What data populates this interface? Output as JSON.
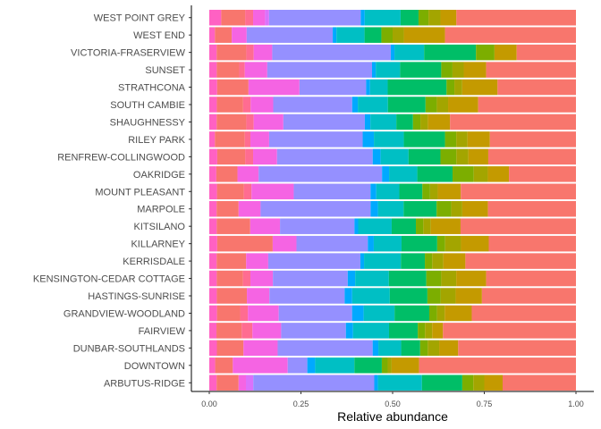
{
  "chart_data": {
    "type": "bar",
    "orientation": "horizontal",
    "stacked": true,
    "title": "",
    "xlabel": "Relative abundance",
    "ylabel": "",
    "xlim": [
      0,
      1
    ],
    "x_ticks": [
      0,
      0.25,
      0.5,
      0.75,
      1
    ],
    "x_tick_labels": [
      "0.00",
      "0.25",
      "0.50",
      "0.75",
      "1.00"
    ],
    "grid": false,
    "legend": "none",
    "categories": [
      "WEST POINT GREY",
      "WEST END",
      "VICTORIA-FRASERVIEW",
      "SUNSET",
      "STRATHCONA",
      "SOUTH CAMBIE",
      "SHAUGHNESSY",
      "RILEY PARK",
      "RENFREW-COLLINGWOOD",
      "OAKRIDGE",
      "MOUNT PLEASANT",
      "MARPOLE",
      "KITSILANO",
      "KILLARNEY",
      "KERRISDALE",
      "KENSINGTON-CEDAR COTTAGE",
      "HASTINGS-SUNRISE",
      "GRANDVIEW-WOODLAND",
      "FAIRVIEW",
      "DUNBAR-SOUTHLANDS",
      "DOWNTOWN",
      "ARBUTUS-RIDGE"
    ],
    "series": [
      {
        "color": "#FF61C3",
        "values": [
          0.03,
          0.015,
          0.02,
          0.02,
          0.02,
          0.02,
          0.02,
          0.015,
          0.02,
          0.02,
          0.02,
          0.02,
          0.02,
          0.02,
          0.02,
          0.02,
          0.02,
          0.02,
          0.02,
          0.02,
          0.015,
          0.02
        ]
      },
      {
        "color": "#F8766D",
        "values": [
          0.06,
          0.045,
          0.08,
          0.06,
          0.08,
          0.07,
          0.08,
          0.08,
          0.07,
          0.06,
          0.07,
          0.06,
          0.09,
          0.14,
          0.08,
          0.07,
          0.08,
          0.06,
          0.07,
          0.07,
          0.045,
          0.06
        ]
      },
      {
        "color": "#FF6C91",
        "values": [
          0.02,
          0.0,
          0.02,
          0.015,
          0.0,
          0.02,
          0.02,
          0.015,
          0.02,
          0.0,
          0.02,
          0.0,
          0.0,
          0.0,
          0.0,
          0.02,
          0.0,
          0.02,
          0.03,
          0.0,
          0.0,
          0.0
        ]
      },
      {
        "color": "#F564E3",
        "values": [
          0.03,
          0.04,
          0.05,
          0.06,
          0.13,
          0.06,
          0.08,
          0.05,
          0.06,
          0.06,
          0.11,
          0.06,
          0.08,
          0.06,
          0.06,
          0.06,
          0.06,
          0.08,
          0.08,
          0.09,
          0.14,
          0.02
        ]
      },
      {
        "color": "#DB72FB",
        "values": [
          0.01,
          0.0,
          0.0,
          0.0,
          0.0,
          0.0,
          0.0,
          0.0,
          0.0,
          0.0,
          0.0,
          0.0,
          0.0,
          0.0,
          0.0,
          0.0,
          0.0,
          0.0,
          0.0,
          0.0,
          0.0,
          0.02
        ]
      },
      {
        "color": "#9590FF",
        "values": [
          0.23,
          0.23,
          0.32,
          0.28,
          0.17,
          0.21,
          0.22,
          0.25,
          0.24,
          0.35,
          0.2,
          0.3,
          0.2,
          0.18,
          0.25,
          0.2,
          0.2,
          0.19,
          0.18,
          0.25,
          0.05,
          0.33
        ]
      },
      {
        "color": "#00A9FF",
        "values": [
          0.01,
          0.01,
          0.01,
          0.01,
          0.01,
          0.015,
          0.015,
          0.03,
          0.02,
          0.02,
          0.015,
          0.02,
          0.01,
          0.015,
          0.01,
          0.02,
          0.02,
          0.03,
          0.02,
          0.015,
          0.02,
          0.01
        ]
      },
      {
        "color": "#00BFC4",
        "values": [
          0.09,
          0.075,
          0.08,
          0.065,
          0.045,
          0.08,
          0.07,
          0.08,
          0.07,
          0.08,
          0.06,
          0.07,
          0.09,
          0.07,
          0.1,
          0.09,
          0.1,
          0.08,
          0.1,
          0.06,
          0.1,
          0.12
        ]
      },
      {
        "color": "#00BE67",
        "values": [
          0.045,
          0.045,
          0.14,
          0.11,
          0.15,
          0.1,
          0.045,
          0.11,
          0.08,
          0.1,
          0.06,
          0.09,
          0.065,
          0.09,
          0.065,
          0.1,
          0.1,
          0.09,
          0.08,
          0.05,
          0.07,
          0.11
        ]
      },
      {
        "color": "#7CAE00",
        "values": [
          0.025,
          0.03,
          0.05,
          0.03,
          0.02,
          0.03,
          0.02,
          0.03,
          0.04,
          0.06,
          0.02,
          0.04,
          0.02,
          0.02,
          0.02,
          0.04,
          0.035,
          0.02,
          0.02,
          0.02,
          0.015,
          0.03
        ]
      },
      {
        "color": "#A3A500",
        "values": [
          0.03,
          0.03,
          0.0,
          0.03,
          0.02,
          0.03,
          0.02,
          0.03,
          0.03,
          0.04,
          0.02,
          0.03,
          0.02,
          0.04,
          0.03,
          0.04,
          0.04,
          0.02,
          0.02,
          0.03,
          0.01,
          0.03
        ]
      },
      {
        "color": "#C49A00",
        "values": [
          0.04,
          0.11,
          0.06,
          0.06,
          0.09,
          0.08,
          0.06,
          0.06,
          0.05,
          0.06,
          0.06,
          0.07,
          0.08,
          0.07,
          0.06,
          0.08,
          0.07,
          0.07,
          0.03,
          0.05,
          0.07,
          0.05
        ]
      },
      {
        "color": "#F8766D",
        "values": [
          0.3,
          0.35,
          0.16,
          0.24,
          0.2,
          0.26,
          0.34,
          0.23,
          0.22,
          0.19,
          0.3,
          0.24,
          0.31,
          0.22,
          0.3,
          0.24,
          0.25,
          0.27,
          0.37,
          0.31,
          0.4,
          0.2
        ]
      }
    ]
  }
}
